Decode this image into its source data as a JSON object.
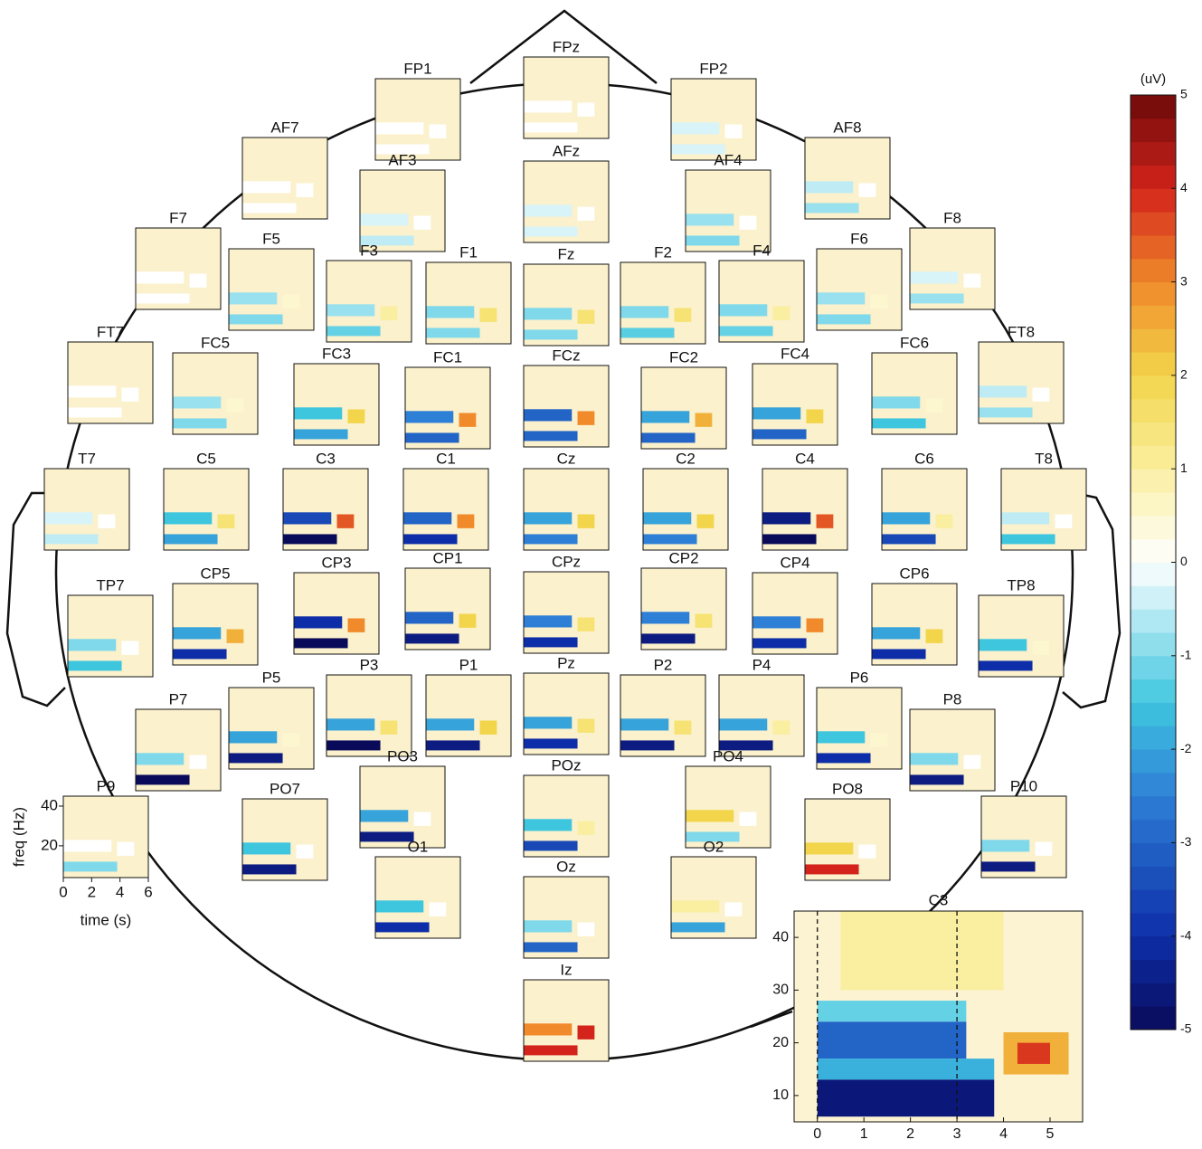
{
  "chart_data": {
    "type": "heatmap-grid",
    "colorbar": {
      "label": "(uV)",
      "clim": [
        -5,
        5
      ],
      "ticks": [
        -5,
        -4,
        -3,
        -2,
        -1,
        0,
        1,
        2,
        3,
        4,
        5
      ]
    },
    "axes_example": {
      "ylabel": "freq (Hz)",
      "xlabel": "time (s)",
      "xlim": [
        0,
        6
      ],
      "ylim": [
        4,
        45
      ],
      "xticks": [
        0,
        2,
        4,
        6
      ],
      "yticks": [
        20,
        40
      ]
    },
    "electrodes": [
      {
        "label": "FP1",
        "values": [
          0,
          0,
          0
        ]
      },
      {
        "label": "FPz",
        "values": [
          0,
          0,
          0
        ]
      },
      {
        "label": "FP2",
        "values": [
          -0.3,
          -0.3,
          0
        ]
      },
      {
        "label": "AF7",
        "values": [
          0,
          0,
          0
        ]
      },
      {
        "label": "AF3",
        "values": [
          -0.5,
          -0.3,
          0
        ]
      },
      {
        "label": "AFz",
        "values": [
          -0.3,
          -0.3,
          0
        ]
      },
      {
        "label": "AF4",
        "values": [
          -1,
          -0.8,
          0
        ]
      },
      {
        "label": "AF8",
        "values": [
          -0.8,
          -0.5,
          0
        ]
      },
      {
        "label": "F7",
        "values": [
          0,
          0,
          0
        ]
      },
      {
        "label": "F5",
        "values": [
          -1,
          -0.8,
          0.5
        ]
      },
      {
        "label": "F3",
        "values": [
          -1.2,
          -0.8,
          1
        ]
      },
      {
        "label": "F1",
        "values": [
          -1,
          -1,
          1.5
        ]
      },
      {
        "label": "Fz",
        "values": [
          -1,
          -1,
          1.5
        ]
      },
      {
        "label": "F2",
        "values": [
          -1.3,
          -1,
          1.5
        ]
      },
      {
        "label": "F4",
        "values": [
          -1.2,
          -1,
          1
        ]
      },
      {
        "label": "F6",
        "values": [
          -1,
          -0.8,
          0.5
        ]
      },
      {
        "label": "F8",
        "values": [
          -0.8,
          -0.3,
          0
        ]
      },
      {
        "label": "FT7",
        "values": [
          0,
          0,
          0
        ]
      },
      {
        "label": "FC5",
        "values": [
          -1,
          -0.8,
          0.5
        ]
      },
      {
        "label": "FC3",
        "values": [
          -2,
          -1.5,
          2
        ]
      },
      {
        "label": "FC1",
        "values": [
          -3,
          -2.5,
          3
        ]
      },
      {
        "label": "FCz",
        "values": [
          -3,
          -3,
          3
        ]
      },
      {
        "label": "FC2",
        "values": [
          -3,
          -2,
          2.5
        ]
      },
      {
        "label": "FC4",
        "values": [
          -3,
          -2,
          2
        ]
      },
      {
        "label": "FC6",
        "values": [
          -1.5,
          -1,
          0.5
        ]
      },
      {
        "label": "FT8",
        "values": [
          -0.8,
          -0.5,
          0
        ]
      },
      {
        "label": "T7",
        "values": [
          -0.5,
          -0.3,
          0
        ]
      },
      {
        "label": "C5",
        "values": [
          -2,
          -1.5,
          1.5
        ]
      },
      {
        "label": "C3",
        "values": [
          -5,
          -3.5,
          3.5
        ]
      },
      {
        "label": "C1",
        "values": [
          -4,
          -3,
          3
        ]
      },
      {
        "label": "Cz",
        "values": [
          -2.5,
          -2,
          2
        ]
      },
      {
        "label": "C2",
        "values": [
          -2.5,
          -2,
          2
        ]
      },
      {
        "label": "C4",
        "values": [
          -5,
          -4.5,
          3.5
        ]
      },
      {
        "label": "C6",
        "values": [
          -3.5,
          -2,
          1
        ]
      },
      {
        "label": "T8",
        "values": [
          -1.5,
          -0.5,
          0
        ]
      },
      {
        "label": "TP7",
        "values": [
          -1.5,
          -1,
          0
        ]
      },
      {
        "label": "CP5",
        "values": [
          -4,
          -2,
          2.5
        ]
      },
      {
        "label": "CP3",
        "values": [
          -5,
          -4,
          3
        ]
      },
      {
        "label": "CP1",
        "values": [
          -4.5,
          -3,
          2
        ]
      },
      {
        "label": "CPz",
        "values": [
          -4,
          -2.5,
          1.5
        ]
      },
      {
        "label": "CP2",
        "values": [
          -4.5,
          -2.5,
          1.5
        ]
      },
      {
        "label": "CP4",
        "values": [
          -4,
          -2.5,
          3
        ]
      },
      {
        "label": "CP6",
        "values": [
          -4,
          -2,
          2
        ]
      },
      {
        "label": "TP8",
        "values": [
          -4,
          -1.5,
          0.5
        ]
      },
      {
        "label": "P7",
        "values": [
          -5,
          -1,
          0
        ]
      },
      {
        "label": "P5",
        "values": [
          -4.5,
          -2,
          0.5
        ]
      },
      {
        "label": "P3",
        "values": [
          -5,
          -2,
          1.5
        ]
      },
      {
        "label": "P1",
        "values": [
          -4.5,
          -2,
          2
        ]
      },
      {
        "label": "Pz",
        "values": [
          -4,
          -2,
          1.5
        ]
      },
      {
        "label": "P2",
        "values": [
          -4.5,
          -2,
          1.5
        ]
      },
      {
        "label": "P4",
        "values": [
          -4.5,
          -2,
          1
        ]
      },
      {
        "label": "P6",
        "values": [
          -4,
          -1.5,
          0.5
        ]
      },
      {
        "label": "P8",
        "values": [
          -4.5,
          -1,
          0
        ]
      },
      {
        "label": "P9",
        "values": [
          -1,
          0,
          0
        ]
      },
      {
        "label": "PO7",
        "values": [
          -4.5,
          -1.5,
          0
        ]
      },
      {
        "label": "PO3",
        "values": [
          -4.5,
          -2,
          0
        ]
      },
      {
        "label": "POz",
        "values": [
          -3.5,
          -1.5,
          1
        ]
      },
      {
        "label": "PO4",
        "values": [
          -1,
          2,
          0
        ]
      },
      {
        "label": "PO8",
        "values": [
          4,
          2,
          0
        ]
      },
      {
        "label": "P10",
        "values": [
          -4.5,
          -1,
          0
        ]
      },
      {
        "label": "O1",
        "values": [
          -4,
          -1.5,
          0
        ]
      },
      {
        "label": "Oz",
        "values": [
          -3,
          -1,
          0
        ]
      },
      {
        "label": "O2",
        "values": [
          -2,
          1,
          0
        ]
      },
      {
        "label": "Iz",
        "values": [
          4,
          3,
          4
        ]
      }
    ],
    "inset": {
      "title": "C3",
      "xlim": [
        -0.5,
        5.7
      ],
      "ylim": [
        5,
        45
      ],
      "xticks": [
        0,
        1,
        2,
        3,
        4,
        5
      ],
      "yticks": [
        10,
        20,
        30,
        40
      ],
      "markers": [
        0,
        3
      ],
      "regions": [
        {
          "x": [
            0,
            3.2
          ],
          "y": [
            24,
            28
          ],
          "value": -1.2
        },
        {
          "x": [
            0,
            3.2
          ],
          "y": [
            17,
            24
          ],
          "value": -3
        },
        {
          "x": [
            0,
            3.8
          ],
          "y": [
            13,
            17
          ],
          "value": -1.8
        },
        {
          "x": [
            0,
            3.8
          ],
          "y": [
            6,
            13
          ],
          "value": -4.6
        },
        {
          "x": [
            4,
            5.4
          ],
          "y": [
            14,
            22
          ],
          "value": 2.5
        },
        {
          "x": [
            4.3,
            5.0
          ],
          "y": [
            16,
            20
          ],
          "value": 3.8
        },
        {
          "x": [
            0.5,
            4
          ],
          "y": [
            30,
            45
          ],
          "value": 1
        }
      ]
    }
  }
}
